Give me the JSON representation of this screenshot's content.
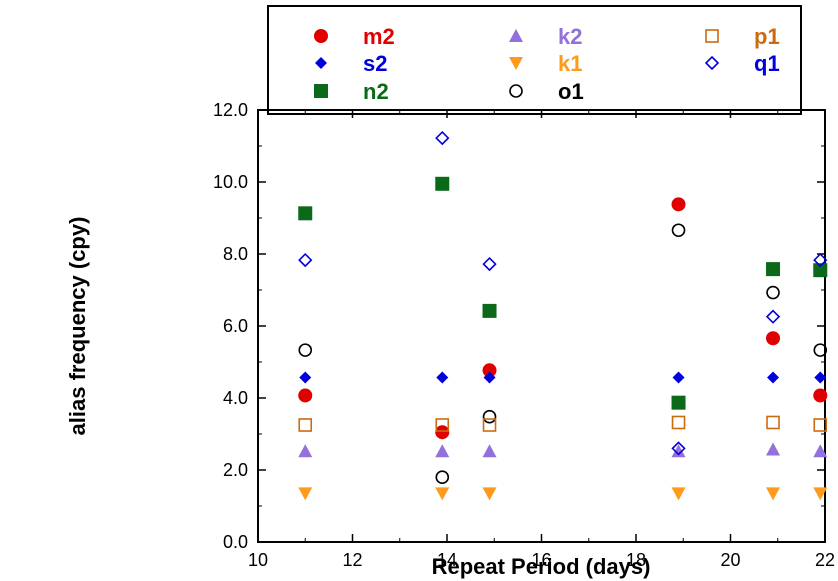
{
  "chart_data": {
    "type": "scatter",
    "xlabel": "Repeat Period (days)",
    "ylabel": "alias frequency (cpy)",
    "xlim": [
      10,
      22
    ],
    "ylim": [
      0,
      12
    ],
    "xticks": [
      "10",
      "12",
      "14",
      "16",
      "18",
      "20",
      "22"
    ],
    "yticks": [
      "0.0",
      "2.0",
      "4.0",
      "6.0",
      "8.0",
      "10.0",
      "12.0"
    ],
    "grid": false,
    "legend_position": "top",
    "series": [
      {
        "name": "m2",
        "marker": "circle-filled",
        "color": "#e00000",
        "points": [
          [
            11.0,
            4.07
          ],
          [
            13.9,
            3.05
          ],
          [
            14.9,
            4.77
          ],
          [
            18.9,
            9.38
          ],
          [
            20.9,
            5.66
          ],
          [
            21.9,
            4.07
          ]
        ]
      },
      {
        "name": "s2",
        "marker": "diamond-filled",
        "color": "#0000dd",
        "points": [
          [
            11.0,
            4.57
          ],
          [
            13.9,
            4.57
          ],
          [
            14.9,
            4.57
          ],
          [
            18.9,
            4.57
          ],
          [
            20.9,
            4.57
          ],
          [
            21.9,
            4.57
          ]
        ]
      },
      {
        "name": "n2",
        "marker": "square-filled",
        "color": "#0a6a1a",
        "points": [
          [
            11.0,
            9.13
          ],
          [
            13.9,
            9.95
          ],
          [
            14.9,
            6.42
          ],
          [
            18.9,
            3.87
          ],
          [
            20.9,
            7.58
          ],
          [
            21.9,
            7.55
          ]
        ]
      },
      {
        "name": "k2",
        "marker": "triangle-up-filled",
        "color": "#9370db",
        "points": [
          [
            11.0,
            2.52
          ],
          [
            13.9,
            2.52
          ],
          [
            14.9,
            2.52
          ],
          [
            18.9,
            2.52
          ],
          [
            20.9,
            2.57
          ],
          [
            21.9,
            2.52
          ]
        ]
      },
      {
        "name": "k1",
        "marker": "triangle-down-filled",
        "color": "#ff9a1a",
        "points": [
          [
            11.0,
            1.35
          ],
          [
            13.9,
            1.35
          ],
          [
            14.9,
            1.35
          ],
          [
            18.9,
            1.35
          ],
          [
            20.9,
            1.35
          ],
          [
            21.9,
            1.35
          ]
        ]
      },
      {
        "name": "o1",
        "marker": "circle-open",
        "color": "#000000",
        "points": [
          [
            11.0,
            5.33
          ],
          [
            13.9,
            1.8
          ],
          [
            14.9,
            3.48
          ],
          [
            18.9,
            8.66
          ],
          [
            20.9,
            6.93
          ],
          [
            21.9,
            5.33
          ]
        ]
      },
      {
        "name": "p1",
        "marker": "square-open",
        "color": "#cc6a10",
        "points": [
          [
            11.0,
            3.25
          ],
          [
            13.9,
            3.25
          ],
          [
            14.9,
            3.25
          ],
          [
            18.9,
            3.32
          ],
          [
            20.9,
            3.32
          ],
          [
            21.9,
            3.25
          ]
        ]
      },
      {
        "name": "q1",
        "marker": "diamond-open",
        "color": "#0000dd",
        "points": [
          [
            11.0,
            7.83
          ],
          [
            13.9,
            11.22
          ],
          [
            14.9,
            7.72
          ],
          [
            18.9,
            2.6
          ],
          [
            20.9,
            6.26
          ],
          [
            21.9,
            7.83
          ]
        ]
      }
    ],
    "legend_colors": {
      "m2": "#e00000",
      "s2": "#0000dd",
      "n2": "#0a6a1a",
      "k2": "#9370db",
      "k1": "#ff9a1a",
      "o1": "#000000",
      "p1": "#cc6a10",
      "q1": "#0000dd"
    }
  }
}
